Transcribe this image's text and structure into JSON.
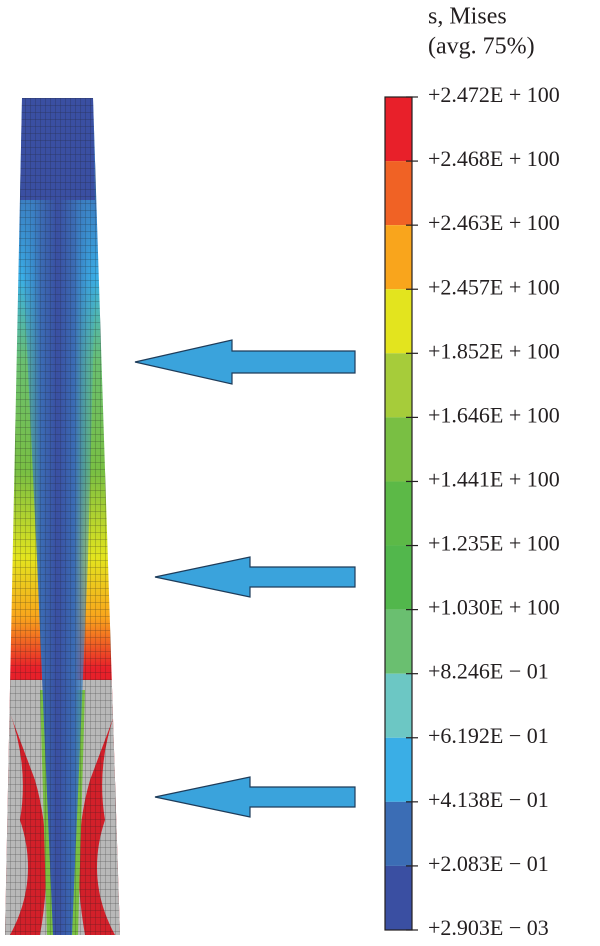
{
  "legend": {
    "title": "s, Mises",
    "subtitle": "(avg. 75%)",
    "labels": [
      "+2.472E + 100",
      "+2.468E + 100",
      "+2.463E + 100",
      "+2.457E + 100",
      "+1.852E + 100",
      "+1.646E + 100",
      "+1.441E + 100",
      "+1.235E + 100",
      "+1.030E + 100",
      "+8.246E − 01",
      "+6.192E − 01",
      "+4.138E − 01",
      "+2.083E − 01",
      "+2.903E − 03"
    ],
    "colors": [
      "#e8202a",
      "#f06225",
      "#f9a51c",
      "#e3e41e",
      "#a6cc3a",
      "#79bf43",
      "#5cb947",
      "#52b74c",
      "#6abf70",
      "#6cc7c4",
      "#3aaee6",
      "#3b6db5",
      "#3a4fa2"
    ]
  }
}
